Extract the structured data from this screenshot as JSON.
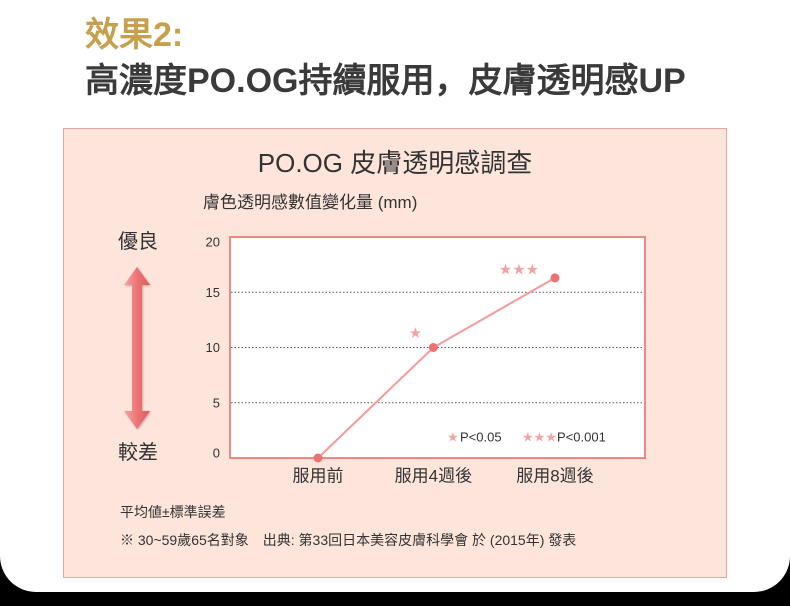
{
  "header": {
    "effect_label": "效果2:",
    "headline": "高濃度PO.OG持續服用，皮膚透明感UP"
  },
  "scale": {
    "top_label": "優良",
    "bottom_label": "較差",
    "icon": "double-arrow-vertical-icon"
  },
  "notes": {
    "stat": "平均値±標準誤差",
    "source": "※ 30~59歲65名對象　出典: 第33回日本美容皮膚科學會 於 (2015年) 發表"
  },
  "colors": {
    "accent_gold": "#c6a04e",
    "headline_text": "#3a3a3a",
    "panel_bg": "#fde5dc",
    "panel_border": "#e9a3a0",
    "plot_bg": "#ffffff",
    "plot_border": "#ef8787",
    "line": "#f59a9a",
    "point": "#ee7272",
    "star": "#f4a3a3",
    "arrow": "#ee7474"
  },
  "chart_data": {
    "type": "line",
    "title": "PO.OG 皮膚透明感調查",
    "ylabel": "膚色透明感數值變化量 (mm)",
    "xlabel": "",
    "categories": [
      "服用前",
      "服用4週後",
      "服用8週後"
    ],
    "values": [
      0,
      10,
      16.3
    ],
    "ylim": [
      0,
      20
    ],
    "yticks": [
      0,
      5,
      10,
      15,
      20
    ],
    "grid": true,
    "significance": [
      "",
      "★",
      "★★★"
    ],
    "legend": [
      {
        "marker": "★",
        "label": "P<0.05"
      },
      {
        "marker": "★★★",
        "label": "P<0.001"
      }
    ],
    "legend_position": "bottom-right"
  }
}
